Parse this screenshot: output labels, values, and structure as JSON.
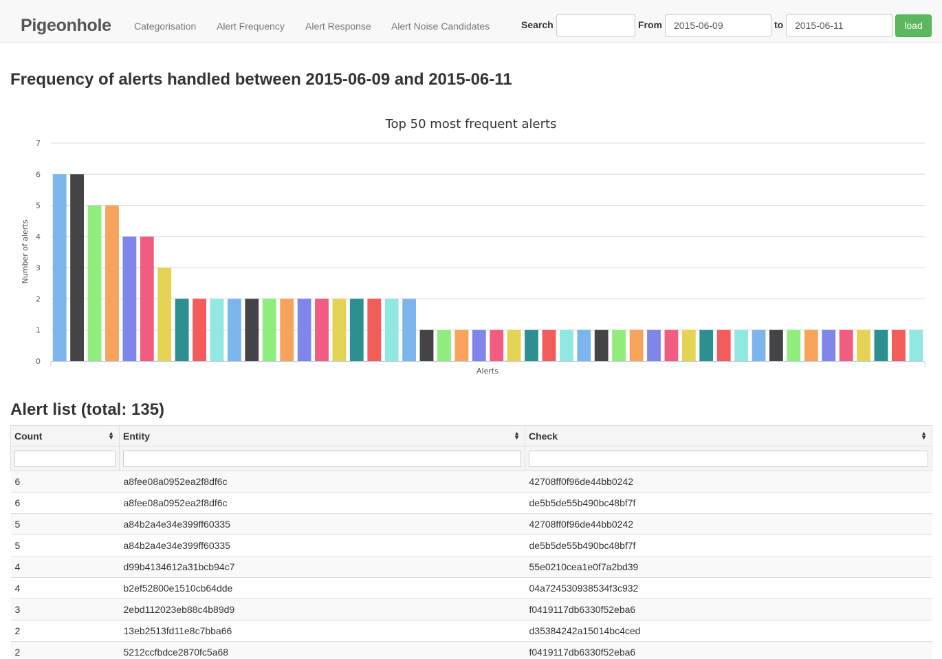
{
  "navbar": {
    "brand": "Pigeonhole",
    "links": [
      "Categorisation",
      "Alert Frequency",
      "Alert Response",
      "Alert Noise Candidates"
    ],
    "search_label": "Search",
    "search_value": "",
    "from_label": "From",
    "from_value": "2015-06-09",
    "to_label": "to",
    "to_value": "2015-06-11",
    "load_label": "load"
  },
  "page_title": "Frequency of alerts handled between 2015-06-09 and 2015-06-11",
  "chart_data": {
    "type": "bar",
    "title": "Top 50 most frequent alerts",
    "xlabel": "Alerts",
    "ylabel": "Number of alerts",
    "ylim": [
      0,
      7
    ],
    "yticks": [
      0,
      1,
      2,
      3,
      4,
      5,
      6,
      7
    ],
    "grid": true,
    "values": [
      6,
      6,
      5,
      5,
      4,
      4,
      3,
      2,
      2,
      2,
      2,
      2,
      2,
      2,
      2,
      2,
      2,
      2,
      2,
      2,
      2,
      1,
      1,
      1,
      1,
      1,
      1,
      1,
      1,
      1,
      1,
      1,
      1,
      1,
      1,
      1,
      1,
      1,
      1,
      1,
      1,
      1,
      1,
      1,
      1,
      1,
      1,
      1,
      1,
      1
    ],
    "palette": [
      "#7cb5ec",
      "#434348",
      "#90ed7d",
      "#f7a35c",
      "#8085e9",
      "#f15c80",
      "#e4d354",
      "#2b908f",
      "#f45b5b",
      "#91e8e1"
    ]
  },
  "list": {
    "title": "Alert list (total: 135)",
    "columns": [
      "Count",
      "Entity",
      "Check"
    ],
    "rows": [
      [
        "6",
        "a8fee08a0952ea2f8df6c",
        "42708ff0f96de44bb0242"
      ],
      [
        "6",
        "a8fee08a0952ea2f8df6c",
        "de5b5de55b490bc48bf7f"
      ],
      [
        "5",
        "a84b2a4e34e399ff60335",
        "42708ff0f96de44bb0242"
      ],
      [
        "5",
        "a84b2a4e34e399ff60335",
        "de5b5de55b490bc48bf7f"
      ],
      [
        "4",
        "d99b4134612a31bcb94c7",
        "55e0210cea1e0f7a2bd39"
      ],
      [
        "4",
        "b2ef52800e1510cb64dde",
        "04a724530938534f3c932"
      ],
      [
        "3",
        "2ebd112023eb88c4b89d9",
        "f0419117db6330f52eba6"
      ],
      [
        "2",
        "13eb2513fd11e8c7bba66",
        "d35384242a15014bc4ced"
      ],
      [
        "2",
        "5212ccfbdce2870fc5a68",
        "f0419117db6330f52eba6"
      ]
    ]
  }
}
